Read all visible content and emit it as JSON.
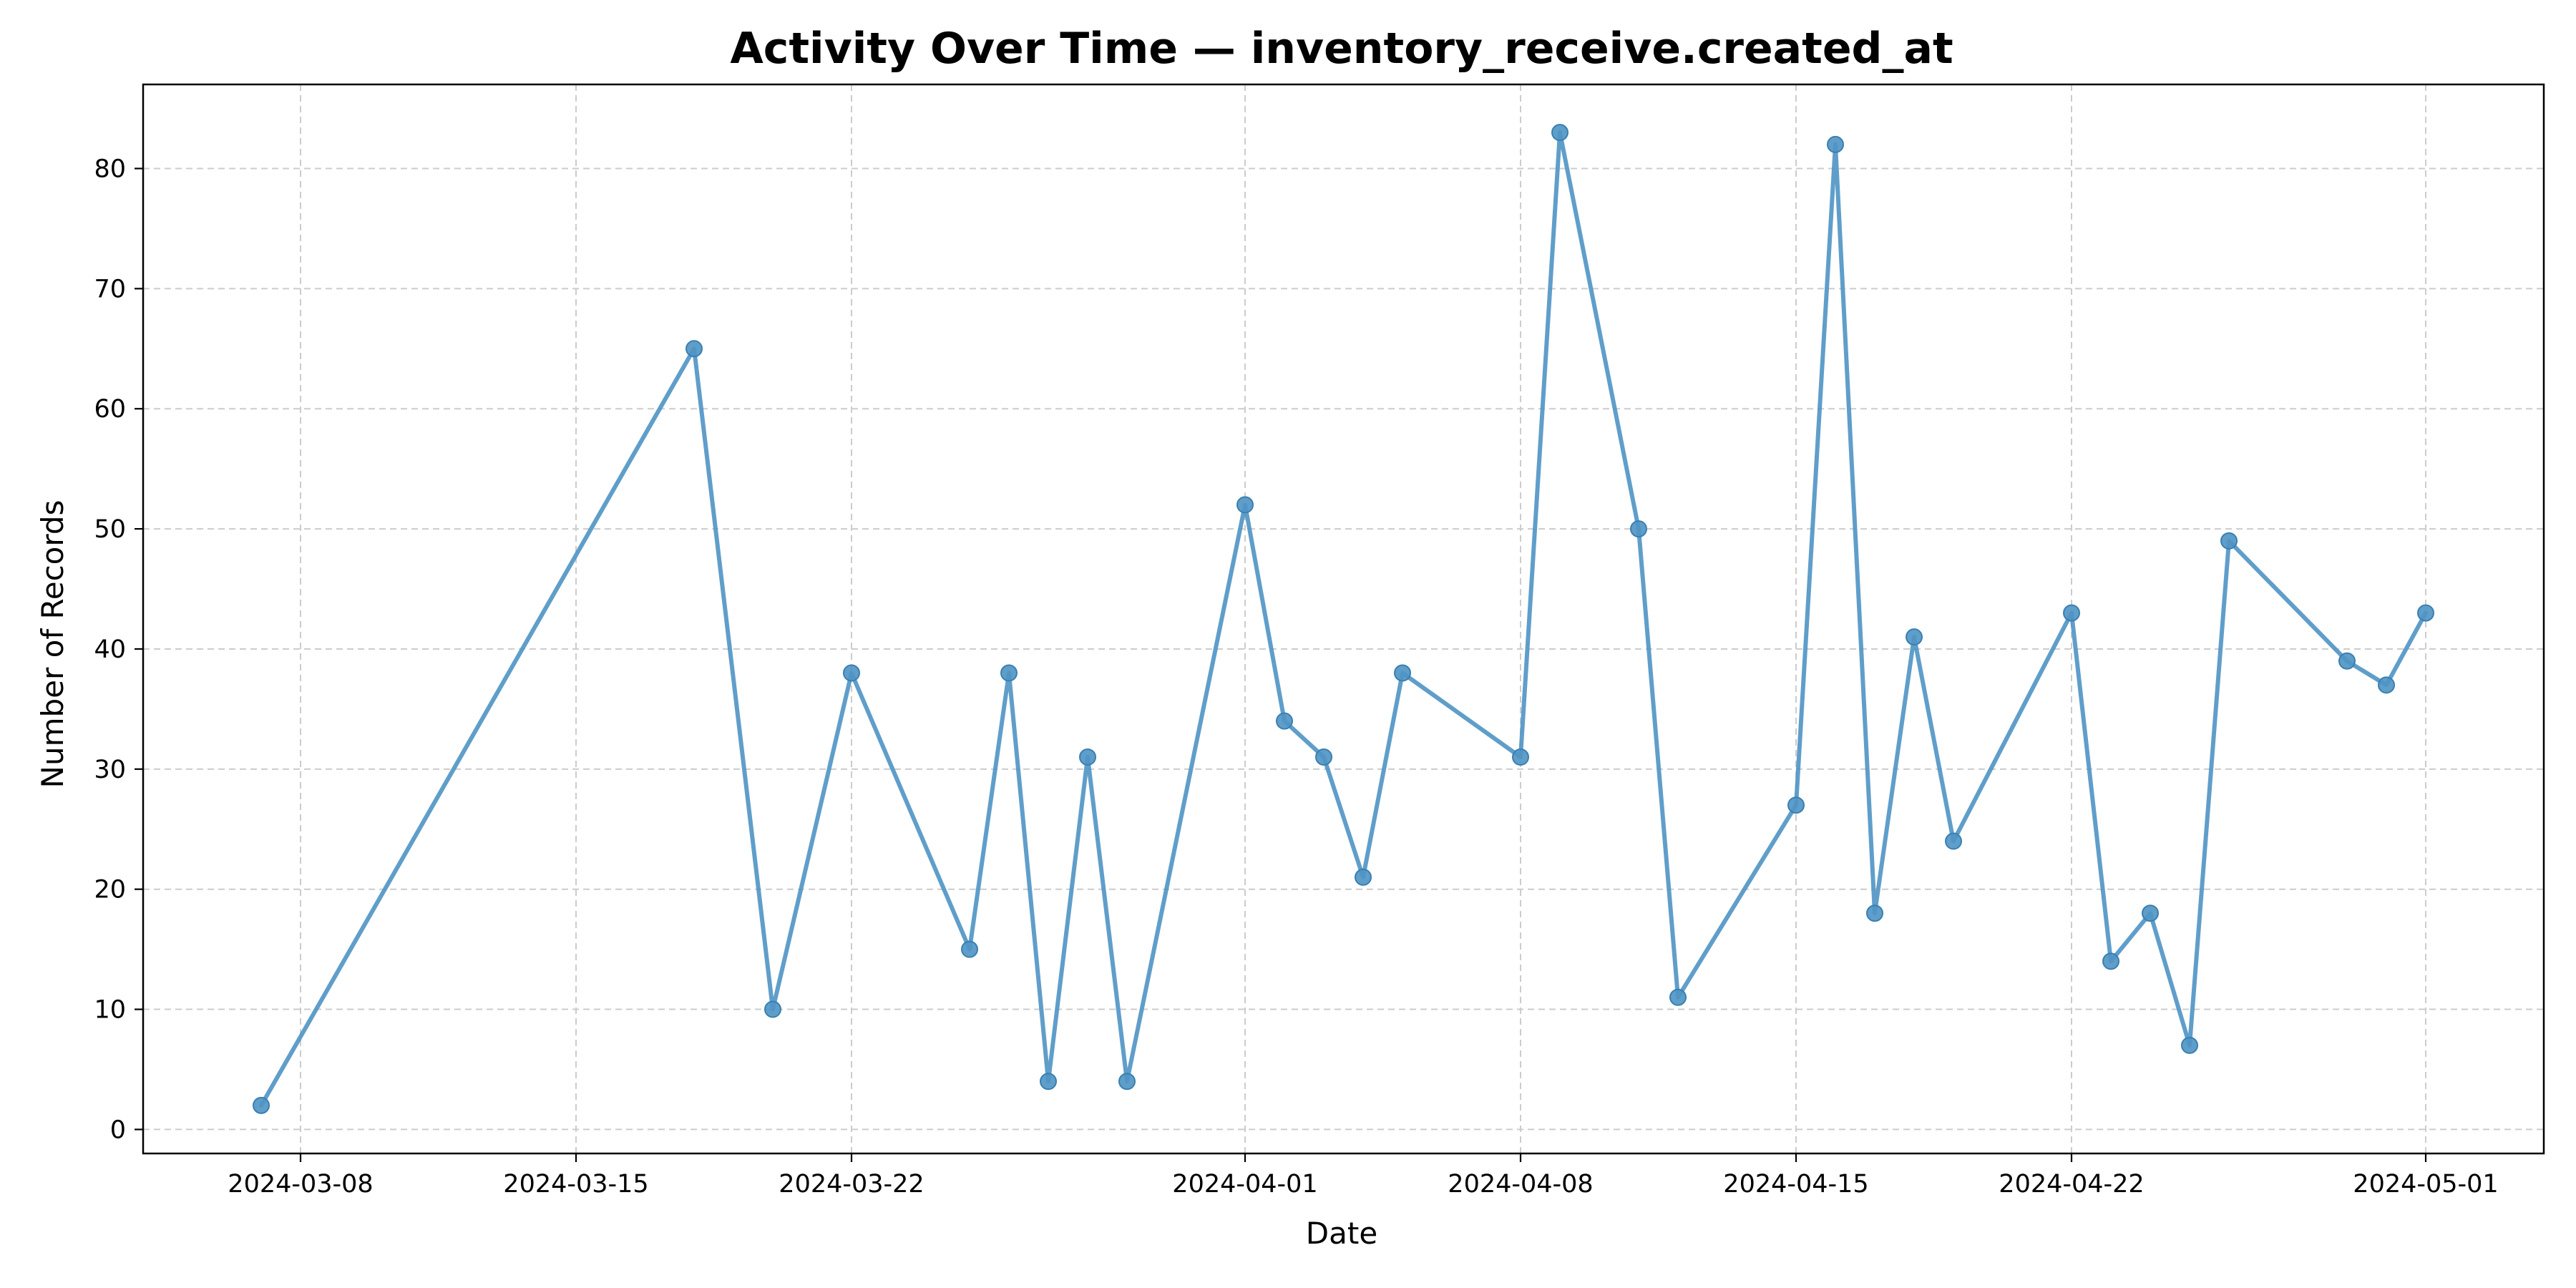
{
  "chart_data": {
    "type": "line",
    "title": "Activity Over Time — inventory_receive.created_at",
    "xlabel": "Date",
    "ylabel": "Number of Records",
    "x_tick_labels": [
      "2024-03-08",
      "2024-03-15",
      "2024-03-22",
      "2024-04-01",
      "2024-04-08",
      "2024-04-15",
      "2024-04-22",
      "2024-05-01"
    ],
    "y_ticks": [
      0,
      10,
      20,
      30,
      40,
      50,
      60,
      70,
      80
    ],
    "xlim": [
      "2024-03-04",
      "2024-05-04"
    ],
    "ylim": [
      -2,
      87
    ],
    "grid": true,
    "line_color": "#4f94c4",
    "series": [
      {
        "x": [
          "2024-03-07",
          "2024-03-18",
          "2024-03-20",
          "2024-03-22",
          "2024-03-25",
          "2024-03-26",
          "2024-03-27",
          "2024-03-28",
          "2024-03-29",
          "2024-04-01",
          "2024-04-02",
          "2024-04-03",
          "2024-04-04",
          "2024-04-05",
          "2024-04-08",
          "2024-04-09",
          "2024-04-11",
          "2024-04-12",
          "2024-04-15",
          "2024-04-16",
          "2024-04-17",
          "2024-04-18",
          "2024-04-19",
          "2024-04-22",
          "2024-04-23",
          "2024-04-24",
          "2024-04-25",
          "2024-04-26",
          "2024-04-29",
          "2024-04-30",
          "2024-05-01"
        ],
        "y": [
          2,
          65,
          10,
          38,
          15,
          38,
          4,
          31,
          4,
          52,
          34,
          31,
          21,
          38,
          31,
          83,
          50,
          11,
          27,
          82,
          18,
          41,
          24,
          43,
          14,
          18,
          7,
          49,
          39,
          37,
          43
        ]
      }
    ]
  }
}
